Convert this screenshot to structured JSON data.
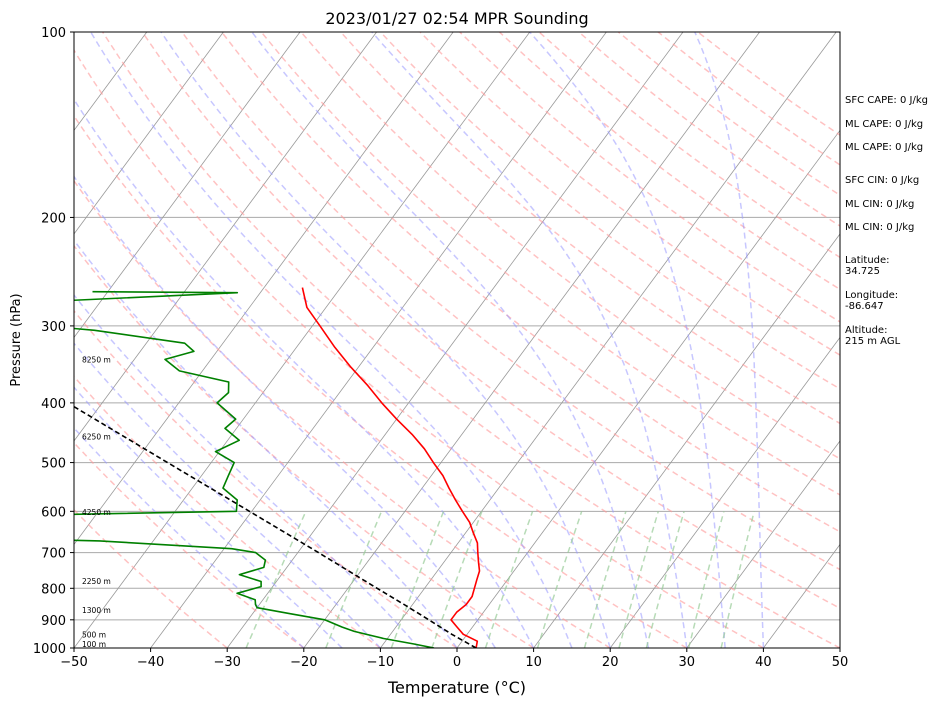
{
  "chart_data": {
    "type": "line",
    "title": "2023/01/27 02:54 MPR Sounding",
    "xlabel": "Temperature (°C)",
    "ylabel": "Pressure (hPa)",
    "xlim": [
      -50,
      50
    ],
    "ylim": [
      1000,
      100
    ],
    "y_scale": "log",
    "grid": true,
    "x_ticks": [
      -50,
      -40,
      -30,
      -20,
      -10,
      0,
      10,
      20,
      30,
      40,
      50
    ],
    "y_ticks": [
      100,
      200,
      300,
      400,
      500,
      600,
      700,
      800,
      900,
      1000
    ],
    "series": [
      {
        "role": "temperature",
        "color": "#ff0000",
        "points": [
          {
            "p": 1000,
            "t": 2.5
          },
          {
            "p": 975,
            "t": 2.0
          },
          {
            "p": 950,
            "t": -0.5
          },
          {
            "p": 925,
            "t": -2.0
          },
          {
            "p": 900,
            "t": -3.5
          },
          {
            "p": 875,
            "t": -3.5
          },
          {
            "p": 850,
            "t": -3.0
          },
          {
            "p": 825,
            "t": -3.0
          },
          {
            "p": 800,
            "t": -3.5
          },
          {
            "p": 775,
            "t": -4.0
          },
          {
            "p": 750,
            "t": -4.5
          },
          {
            "p": 725,
            "t": -5.5
          },
          {
            "p": 700,
            "t": -6.5
          },
          {
            "p": 675,
            "t": -7.5
          },
          {
            "p": 650,
            "t": -9.0
          },
          {
            "p": 625,
            "t": -10.5
          },
          {
            "p": 600,
            "t": -12.5
          },
          {
            "p": 575,
            "t": -14.5
          },
          {
            "p": 550,
            "t": -16.5
          },
          {
            "p": 525,
            "t": -18.5
          },
          {
            "p": 500,
            "t": -21.0
          },
          {
            "p": 475,
            "t": -23.5
          },
          {
            "p": 450,
            "t": -26.5
          },
          {
            "p": 425,
            "t": -30.0
          },
          {
            "p": 400,
            "t": -33.5
          },
          {
            "p": 375,
            "t": -37.0
          },
          {
            "p": 350,
            "t": -41.0
          },
          {
            "p": 325,
            "t": -45.0
          },
          {
            "p": 300,
            "t": -49.0
          },
          {
            "p": 280,
            "t": -52.5
          },
          {
            "p": 260,
            "t": -55.0
          }
        ]
      },
      {
        "role": "dewpoint",
        "color": "#008000",
        "points": [
          {
            "p": 1000,
            "t": -3.0
          },
          {
            "p": 985,
            "t": -6.0
          },
          {
            "p": 965,
            "t": -10.5
          },
          {
            "p": 940,
            "t": -15.0
          },
          {
            "p": 925,
            "t": -17.0
          },
          {
            "p": 900,
            "t": -20.0
          },
          {
            "p": 880,
            "t": -25.0
          },
          {
            "p": 860,
            "t": -30.0
          },
          {
            "p": 850,
            "t": -30.5
          },
          {
            "p": 835,
            "t": -31.0
          },
          {
            "p": 815,
            "t": -34.0
          },
          {
            "p": 795,
            "t": -31.5
          },
          {
            "p": 780,
            "t": -32.0
          },
          {
            "p": 760,
            "t": -35.5
          },
          {
            "p": 740,
            "t": -33.0
          },
          {
            "p": 720,
            "t": -33.5
          },
          {
            "p": 700,
            "t": -35.5
          },
          {
            "p": 690,
            "t": -39.0
          },
          {
            "p": 670,
            "t": -57.0
          },
          {
            "p": 660,
            "t": -80.0
          },
          {
            "p": 640,
            "t": -80.0
          },
          {
            "p": 625,
            "t": -73.0
          },
          {
            "p": 610,
            "t": -73.0
          },
          {
            "p": 600,
            "t": -42.0
          },
          {
            "p": 575,
            "t": -43.0
          },
          {
            "p": 550,
            "t": -46.0
          },
          {
            "p": 525,
            "t": -46.5
          },
          {
            "p": 500,
            "t": -47.0
          },
          {
            "p": 480,
            "t": -50.5
          },
          {
            "p": 460,
            "t": -48.5
          },
          {
            "p": 440,
            "t": -51.5
          },
          {
            "p": 425,
            "t": -51.0
          },
          {
            "p": 400,
            "t": -55.0
          },
          {
            "p": 385,
            "t": -54.5
          },
          {
            "p": 370,
            "t": -55.5
          },
          {
            "p": 355,
            "t": -63.0
          },
          {
            "p": 340,
            "t": -66.0
          },
          {
            "p": 330,
            "t": -63.0
          },
          {
            "p": 320,
            "t": -65.0
          },
          {
            "p": 305,
            "t": -78.0
          },
          {
            "p": 300,
            "t": -85.0
          },
          {
            "p": 275,
            "t": -90.0
          },
          {
            "p": 265,
            "t": -63.0
          },
          {
            "p": 264,
            "t": -82.0
          }
        ]
      },
      {
        "role": "parcel",
        "color": "#000000",
        "style": "dashed",
        "points": [
          {
            "p": 1000,
            "t": 2.5
          },
          {
            "p": 950,
            "t": -2.0
          },
          {
            "p": 900,
            "t": -6.4
          },
          {
            "p": 850,
            "t": -11.1
          },
          {
            "p": 800,
            "t": -16.2
          },
          {
            "p": 700,
            "t": -27.3
          },
          {
            "p": 600,
            "t": -40.3
          },
          {
            "p": 500,
            "t": -55.7
          },
          {
            "p": 400,
            "t": -74.5
          },
          {
            "p": 280,
            "t": -106.0
          }
        ]
      }
    ],
    "height_labels": [
      {
        "p": 1000,
        "label": "100 m"
      },
      {
        "p": 965,
        "label": "500 m"
      },
      {
        "p": 880,
        "label": "1300 m"
      },
      {
        "p": 790,
        "label": "2250 m"
      },
      {
        "p": 610,
        "label": "4250 m"
      },
      {
        "p": 460,
        "label": "6250 m"
      },
      {
        "p": 345,
        "label": "8250 m"
      }
    ],
    "annotations": {
      "sfc_cape": "SFC CAPE: 0 J/kg",
      "ml_cape_1": "ML CAPE: 0 J/kg",
      "ml_cape_2": "ML CAPE: 0 J/kg",
      "sfc_cin": "SFC CIN: 0 J/kg",
      "ml_cin_1": "ML CIN: 0 J/kg",
      "ml_cin_2": "ML CIN: 0 J/kg",
      "latitude": "Latitude:\n34.725",
      "longitude": "Longitude:\n-86.647",
      "altitude": "Altitude:\n215 m AGL"
    },
    "colors": {
      "dry_adiabat": "#ff9999",
      "moist_adiabat": "#9999ff",
      "mixing_ratio": "#99cc99",
      "isotherm": "#999999"
    }
  }
}
